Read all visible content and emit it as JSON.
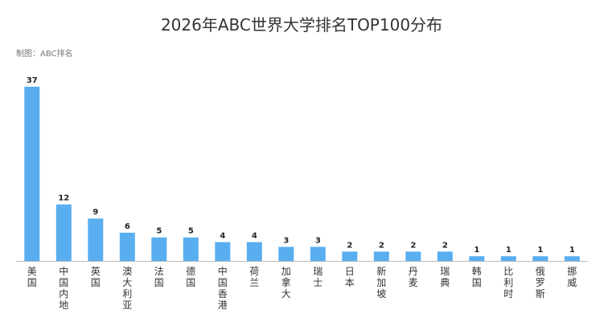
{
  "chart_data": {
    "type": "bar",
    "title": "2026年ABC世界大学排名TOP100分布",
    "source": "制图：ABC排名",
    "categories": [
      "美国",
      "中国内地",
      "英国",
      "澳大利亚",
      "法国",
      "德国",
      "中国香港",
      "荷兰",
      "加拿大",
      "瑞士",
      "日本",
      "新加坡",
      "丹麦",
      "瑞典",
      "韩国",
      "比利时",
      "俄罗斯",
      "挪威"
    ],
    "values": [
      37,
      12,
      9,
      6,
      5,
      5,
      4,
      4,
      3,
      3,
      2,
      2,
      2,
      2,
      1,
      1,
      1,
      1
    ],
    "xlabel": "",
    "ylabel": "",
    "ylim": [
      0,
      37
    ],
    "grid": false,
    "legend": "none",
    "colors": {
      "bar": "#59AEF0",
      "axis": "#BBBBBB"
    }
  }
}
